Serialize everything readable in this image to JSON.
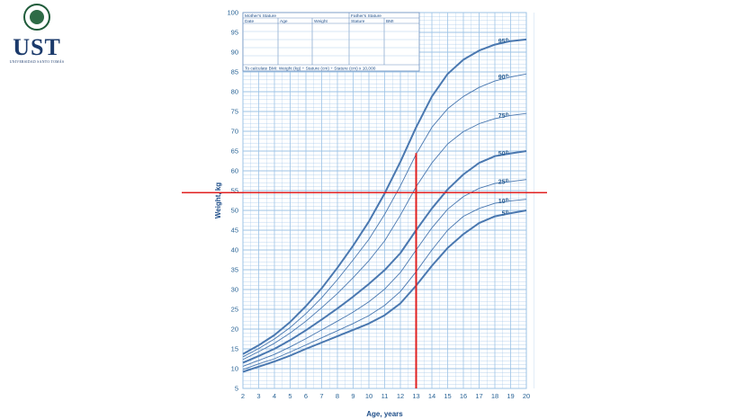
{
  "logo": {
    "name": "UST",
    "subtitle": "UNIVERSIDAD SANTO TOMÁS"
  },
  "table": {
    "mothers_stature": "Mother's Stature",
    "fathers_stature": "Father's Stature",
    "headers": [
      "Date",
      "Age",
      "Weight",
      "Stature",
      "BMI"
    ],
    "bmi_formula": "To calculate BMI: Weight (kg) ÷ Stature (cm) ÷ Stature (cm) x 10,000"
  },
  "colors": {
    "grid": "#9dc3e6",
    "axis_text": "#2a6496",
    "curve": "#4a78b0",
    "marker": "#e02020"
  },
  "chart_data": {
    "type": "line",
    "title": "",
    "xlabel": "Age, years",
    "ylabel": "Weight, kg",
    "xlim": [
      2,
      20
    ],
    "ylim": [
      5,
      100
    ],
    "x_ticks": [
      2,
      3,
      4,
      5,
      6,
      7,
      8,
      9,
      10,
      11,
      12,
      13,
      14,
      15,
      16,
      17,
      18,
      19,
      20
    ],
    "y_ticks": [
      5,
      10,
      15,
      20,
      25,
      30,
      35,
      40,
      45,
      50,
      55,
      60,
      65,
      70,
      75,
      80,
      85,
      90,
      95,
      100
    ],
    "grid": true,
    "series": [
      {
        "name": "5th",
        "x": [
          2,
          3,
          4,
          5,
          6,
          7,
          8,
          9,
          10,
          11,
          12,
          13,
          14,
          15,
          16,
          17,
          18,
          19,
          20
        ],
        "y": [
          9.2,
          10.5,
          11.8,
          13.3,
          15.0,
          16.6,
          18.2,
          19.8,
          21.4,
          23.5,
          26.5,
          31,
          36,
          40.5,
          44,
          46.8,
          48.5,
          49.3,
          50
        ]
      },
      {
        "name": "10th",
        "x": [
          2,
          3,
          4,
          5,
          6,
          7,
          8,
          9,
          10,
          11,
          12,
          13,
          14,
          15,
          16,
          17,
          18,
          19,
          20
        ],
        "y": [
          9.8,
          11.2,
          12.5,
          14.2,
          16.0,
          17.8,
          19.6,
          21.4,
          23.4,
          26,
          29.5,
          34.5,
          40,
          45,
          48.5,
          50.5,
          51.8,
          52.4,
          52.8
        ]
      },
      {
        "name": "25th",
        "x": [
          2,
          3,
          4,
          5,
          6,
          7,
          8,
          9,
          10,
          11,
          12,
          13,
          14,
          15,
          16,
          17,
          18,
          19,
          20
        ],
        "y": [
          10.6,
          12.1,
          13.6,
          15.5,
          17.6,
          19.8,
          22,
          24.3,
          26.9,
          30.1,
          34.3,
          40,
          45.6,
          50.3,
          53.5,
          55.6,
          56.8,
          57.3,
          57.8
        ]
      },
      {
        "name": "50th",
        "x": [
          2,
          3,
          4,
          5,
          6,
          7,
          8,
          9,
          10,
          11,
          12,
          13,
          14,
          15,
          16,
          17,
          18,
          19,
          20
        ],
        "y": [
          11.5,
          13.2,
          15,
          17.2,
          19.7,
          22.4,
          25.2,
          28.2,
          31.4,
          34.9,
          39.2,
          45,
          50.5,
          55.3,
          59.1,
          62,
          63.7,
          64.4,
          65
        ]
      },
      {
        "name": "75th",
        "x": [
          2,
          3,
          4,
          5,
          6,
          7,
          8,
          9,
          10,
          11,
          12,
          13,
          14,
          15,
          16,
          17,
          18,
          19,
          20
        ],
        "y": [
          12.3,
          14.3,
          16.4,
          19,
          22,
          25.4,
          29,
          33,
          37.3,
          42.3,
          48.8,
          56,
          62,
          66.8,
          69.9,
          71.9,
          73.2,
          74,
          74.5
        ]
      },
      {
        "name": "90th",
        "x": [
          2,
          3,
          4,
          5,
          6,
          7,
          8,
          9,
          10,
          11,
          12,
          13,
          14,
          15,
          16,
          17,
          18,
          19,
          20
        ],
        "y": [
          13,
          15.1,
          17.5,
          20.4,
          23.9,
          27.9,
          32.5,
          37.5,
          42.7,
          49,
          56.2,
          64.2,
          71,
          75.7,
          78.8,
          81.1,
          82.7,
          83.7,
          84.5
        ]
      },
      {
        "name": "95th",
        "x": [
          2,
          3,
          4,
          5,
          6,
          7,
          8,
          9,
          10,
          11,
          12,
          13,
          14,
          15,
          16,
          17,
          18,
          19,
          20
        ],
        "y": [
          13.7,
          15.9,
          18.5,
          21.8,
          25.8,
          30.3,
          35.5,
          41.1,
          47.2,
          54.3,
          62.3,
          71,
          78.8,
          84.5,
          88.1,
          90.4,
          91.9,
          92.8,
          93.2
        ]
      }
    ],
    "markers": {
      "age_line_x": 13,
      "age_line_y_top": 64.5,
      "weight_line_y": 54.5
    },
    "percentile_labels": [
      {
        "series": "95th",
        "num": "95",
        "sup": "th"
      },
      {
        "series": "90th",
        "num": "90",
        "sup": "th"
      },
      {
        "series": "75th",
        "num": "75",
        "sup": "th"
      },
      {
        "series": "50th",
        "num": "50",
        "sup": "th"
      },
      {
        "series": "25th",
        "num": "25",
        "sup": "th"
      },
      {
        "series": "10th",
        "num": "10",
        "sup": "th"
      },
      {
        "series": "5th",
        "num": "5",
        "sup": "th"
      }
    ]
  }
}
